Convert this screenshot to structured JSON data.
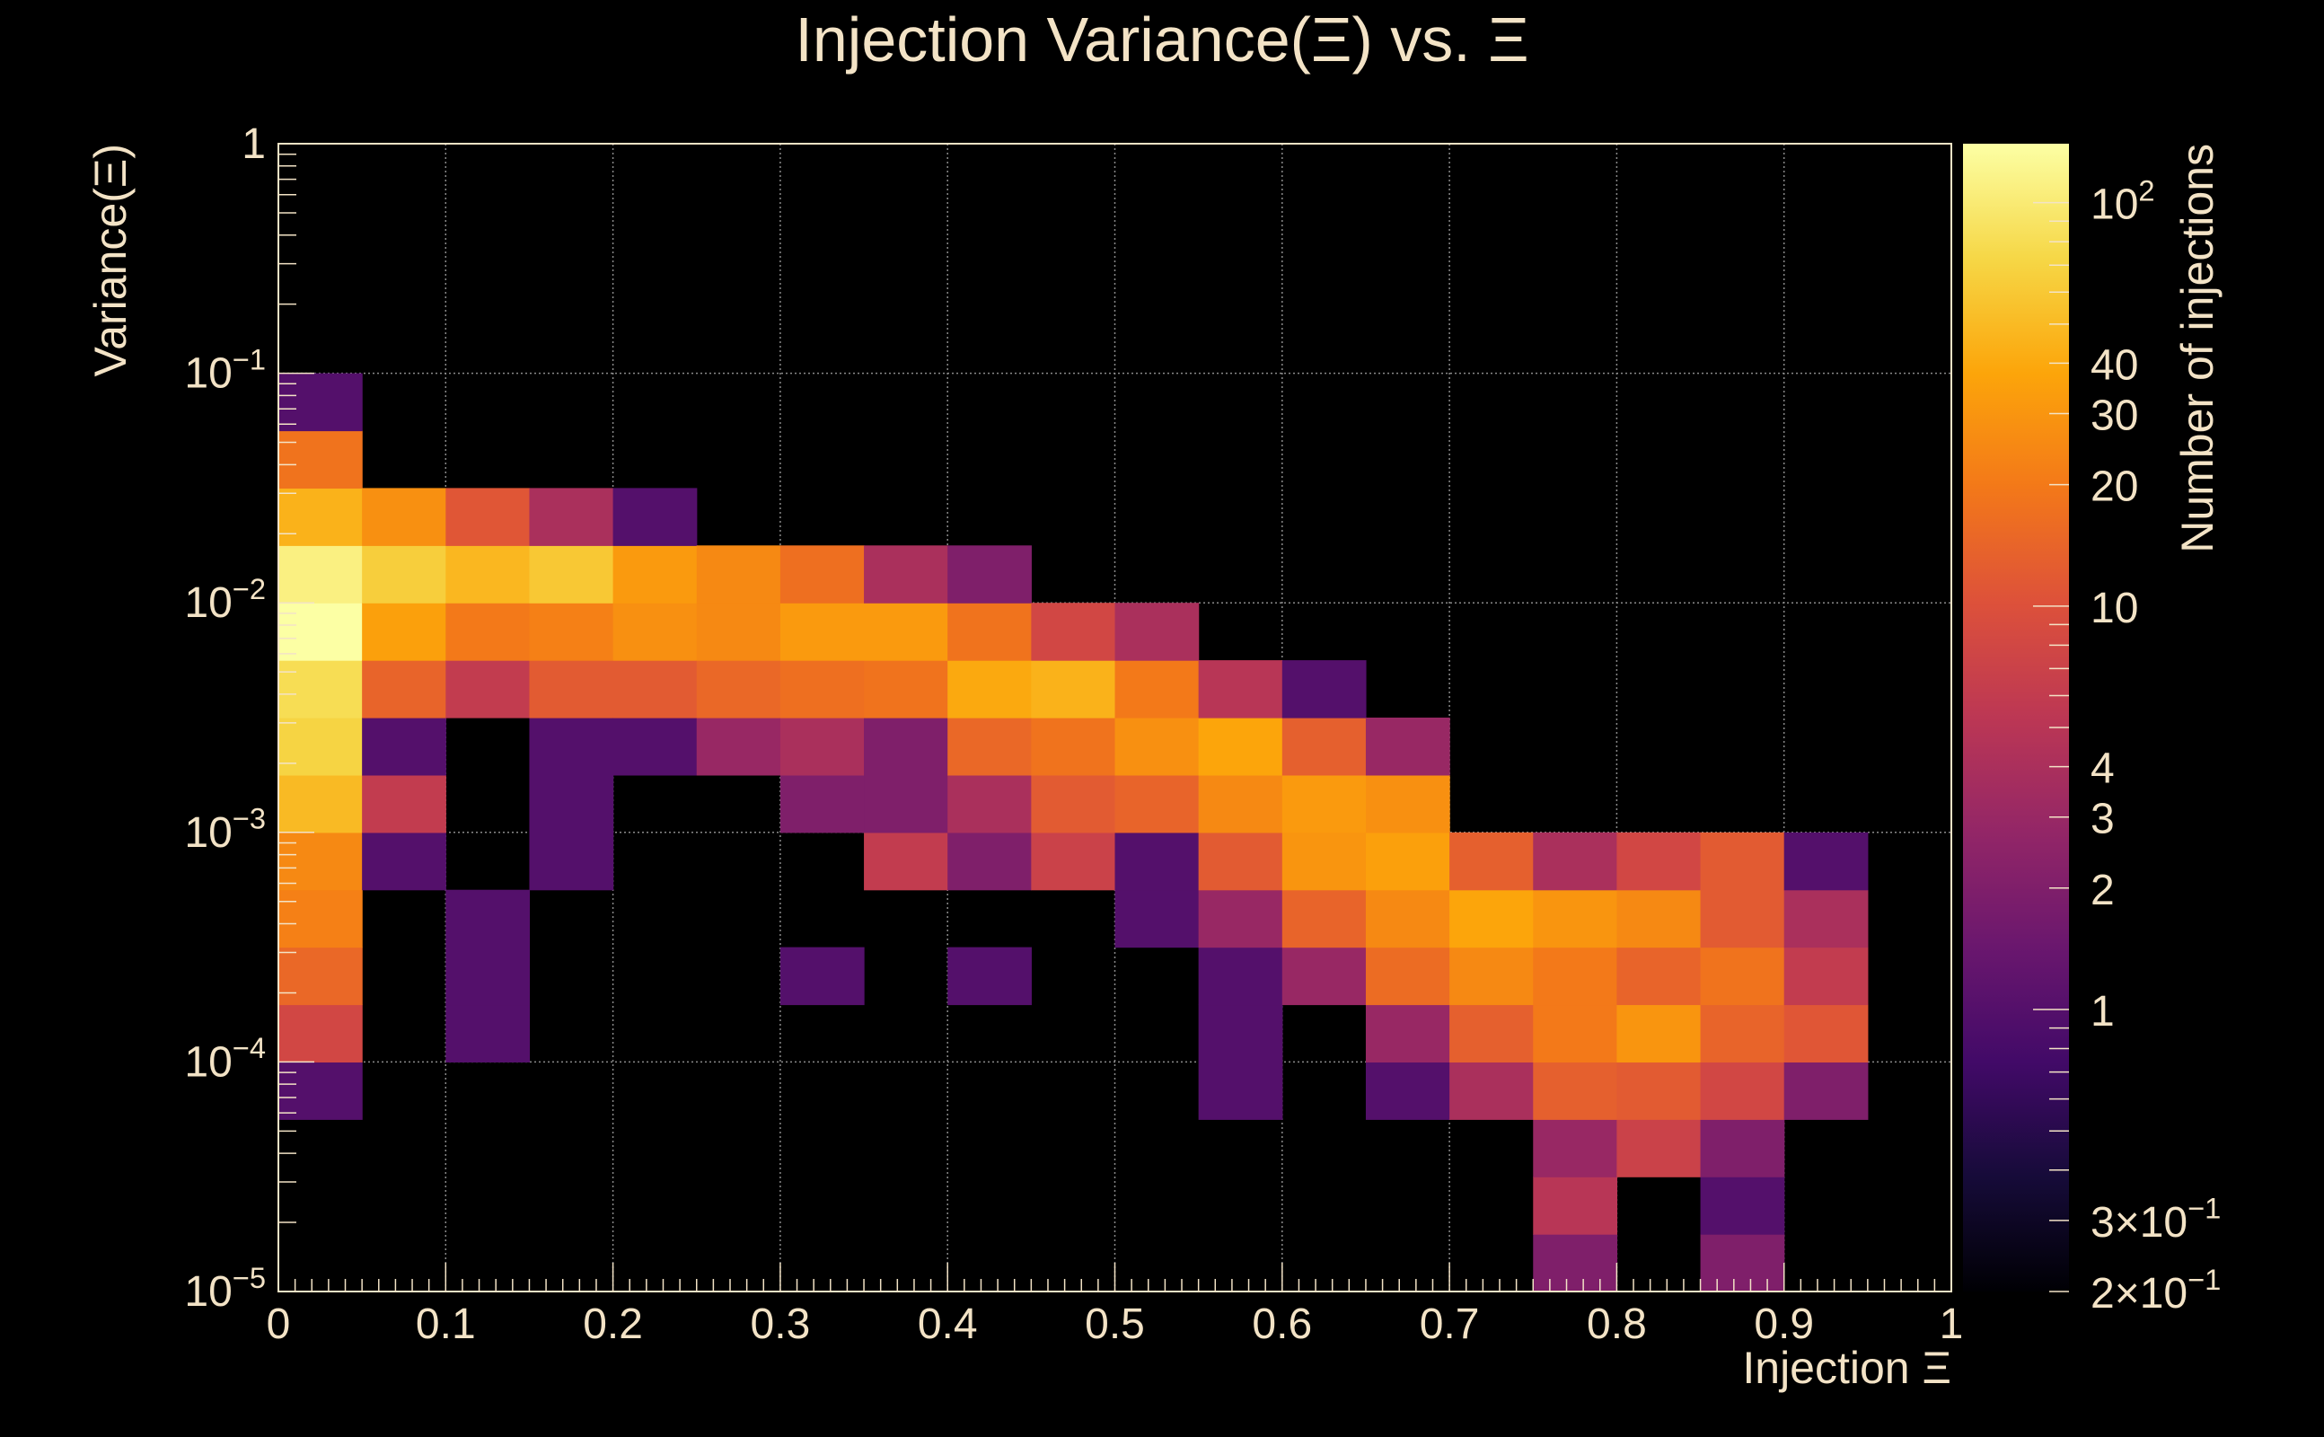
{
  "chart_data": {
    "type": "heatmap",
    "title": "Injection Variance(Ξ) vs. Ξ",
    "xlabel": "Injection Ξ",
    "ylabel": "Variance(Ξ)",
    "colorbar_label": "Number of injections",
    "colorscale": "inferno",
    "z_scale": "log",
    "z_range": [
      0.2,
      140
    ],
    "grid": true,
    "x_range": [
      0,
      1
    ],
    "y_range": [
      1e-05,
      1
    ],
    "y_scale": "log",
    "x_bin_edges": [
      0,
      0.05,
      0.1,
      0.15,
      0.2,
      0.25,
      0.3,
      0.35,
      0.4,
      0.45,
      0.5,
      0.55,
      0.6,
      0.65,
      0.7,
      0.75,
      0.8,
      0.85,
      0.9,
      0.95,
      1
    ],
    "y_bins_per_decade": 4,
    "x_ticks": [
      "0",
      "0.1",
      "0.2",
      "0.3",
      "0.4",
      "0.5",
      "0.6",
      "0.7",
      "0.8",
      "0.9",
      "1"
    ],
    "y_ticks": [
      {
        "base": "1",
        "exp": ""
      },
      {
        "base": "10",
        "exp": "−1"
      },
      {
        "base": "10",
        "exp": "−2"
      },
      {
        "base": "10",
        "exp": "−3"
      },
      {
        "base": "10",
        "exp": "−4"
      },
      {
        "base": "10",
        "exp": "−5"
      }
    ],
    "colorbar_ticks": [
      {
        "base": "10",
        "exp": "2",
        "value": 100
      },
      {
        "base": "40",
        "exp": "",
        "value": 40
      },
      {
        "base": "30",
        "exp": "",
        "value": 30
      },
      {
        "base": "20",
        "exp": "",
        "value": 20
      },
      {
        "base": "10",
        "exp": "",
        "value": 10
      },
      {
        "base": "4",
        "exp": "",
        "value": 4
      },
      {
        "base": "3",
        "exp": "",
        "value": 3
      },
      {
        "base": "2",
        "exp": "",
        "value": 2
      },
      {
        "base": "1",
        "exp": "",
        "value": 1
      },
      {
        "base": "3×10",
        "exp": "−1",
        "value": 0.3
      },
      {
        "base": "2×10",
        "exp": "−1",
        "value": 0.2
      }
    ],
    "cells_note": "each cell: [x_bin_index, y_bin_index (0 = lowest, 4 per decade from 1e-5), count]",
    "cells": [
      [
        0,
        3,
        1
      ],
      [
        0,
        4,
        8
      ],
      [
        0,
        5,
        15
      ],
      [
        0,
        6,
        22
      ],
      [
        0,
        7,
        25
      ],
      [
        0,
        8,
        50
      ],
      [
        0,
        9,
        70
      ],
      [
        0,
        10,
        80
      ],
      [
        0,
        11,
        140
      ],
      [
        0,
        12,
        110
      ],
      [
        0,
        13,
        45
      ],
      [
        0,
        14,
        18
      ],
      [
        0,
        15,
        1
      ],
      [
        1,
        7,
        1
      ],
      [
        1,
        8,
        6
      ],
      [
        1,
        9,
        1
      ],
      [
        1,
        10,
        14
      ],
      [
        1,
        11,
        35
      ],
      [
        1,
        12,
        65
      ],
      [
        1,
        13,
        28
      ],
      [
        2,
        4,
        1
      ],
      [
        2,
        5,
        1
      ],
      [
        2,
        6,
        1
      ],
      [
        2,
        10,
        6
      ],
      [
        2,
        11,
        20
      ],
      [
        2,
        12,
        48
      ],
      [
        2,
        13,
        11
      ],
      [
        3,
        7,
        1
      ],
      [
        3,
        8,
        1
      ],
      [
        3,
        9,
        1
      ],
      [
        3,
        10,
        12
      ],
      [
        3,
        11,
        22
      ],
      [
        3,
        12,
        60
      ],
      [
        3,
        13,
        4
      ],
      [
        4,
        9,
        1
      ],
      [
        4,
        10,
        12
      ],
      [
        4,
        11,
        28
      ],
      [
        4,
        12,
        32
      ],
      [
        4,
        13,
        1
      ],
      [
        5,
        9,
        3
      ],
      [
        5,
        10,
        15
      ],
      [
        5,
        11,
        25
      ],
      [
        5,
        12,
        25
      ],
      [
        6,
        5,
        1
      ],
      [
        6,
        8,
        2
      ],
      [
        6,
        9,
        4
      ],
      [
        6,
        10,
        17
      ],
      [
        6,
        11,
        32
      ],
      [
        6,
        12,
        17
      ],
      [
        7,
        7,
        6
      ],
      [
        7,
        8,
        2
      ],
      [
        7,
        9,
        2
      ],
      [
        7,
        10,
        18
      ],
      [
        7,
        11,
        32
      ],
      [
        7,
        12,
        4
      ],
      [
        8,
        5,
        1
      ],
      [
        8,
        7,
        2
      ],
      [
        8,
        8,
        4
      ],
      [
        8,
        9,
        15
      ],
      [
        8,
        10,
        40
      ],
      [
        8,
        11,
        18
      ],
      [
        8,
        12,
        2
      ],
      [
        9,
        7,
        7
      ],
      [
        9,
        8,
        12
      ],
      [
        9,
        9,
        18
      ],
      [
        9,
        10,
        45
      ],
      [
        9,
        11,
        8
      ],
      [
        10,
        6,
        1
      ],
      [
        10,
        7,
        1
      ],
      [
        10,
        8,
        14
      ],
      [
        10,
        9,
        28
      ],
      [
        10,
        10,
        20
      ],
      [
        10,
        11,
        4
      ],
      [
        11,
        3,
        1
      ],
      [
        11,
        4,
        1
      ],
      [
        11,
        5,
        1
      ],
      [
        11,
        6,
        3
      ],
      [
        11,
        7,
        12
      ],
      [
        11,
        8,
        25
      ],
      [
        11,
        9,
        38
      ],
      [
        11,
        10,
        5
      ],
      [
        12,
        5,
        3
      ],
      [
        12,
        6,
        14
      ],
      [
        12,
        7,
        30
      ],
      [
        12,
        8,
        32
      ],
      [
        12,
        9,
        13
      ],
      [
        12,
        10,
        1
      ],
      [
        13,
        3,
        1
      ],
      [
        13,
        4,
        3
      ],
      [
        13,
        5,
        16
      ],
      [
        13,
        6,
        25
      ],
      [
        13,
        7,
        35
      ],
      [
        13,
        8,
        28
      ],
      [
        13,
        9,
        3
      ],
      [
        14,
        3,
        4
      ],
      [
        14,
        4,
        13
      ],
      [
        14,
        5,
        25
      ],
      [
        14,
        6,
        38
      ],
      [
        14,
        7,
        13
      ],
      [
        15,
        0,
        2
      ],
      [
        15,
        1,
        5
      ],
      [
        15,
        2,
        3
      ],
      [
        15,
        3,
        13
      ],
      [
        15,
        4,
        20
      ],
      [
        15,
        5,
        20
      ],
      [
        15,
        6,
        30
      ],
      [
        15,
        7,
        4
      ],
      [
        16,
        2,
        7
      ],
      [
        16,
        3,
        12
      ],
      [
        16,
        4,
        30
      ],
      [
        16,
        5,
        14
      ],
      [
        16,
        6,
        25
      ],
      [
        16,
        7,
        8
      ],
      [
        17,
        0,
        2
      ],
      [
        17,
        1,
        1
      ],
      [
        17,
        2,
        2
      ],
      [
        17,
        3,
        8
      ],
      [
        17,
        4,
        14
      ],
      [
        17,
        5,
        18
      ],
      [
        17,
        6,
        12
      ],
      [
        17,
        7,
        12
      ],
      [
        18,
        3,
        2
      ],
      [
        18,
        4,
        11
      ],
      [
        18,
        5,
        6
      ],
      [
        18,
        6,
        4
      ],
      [
        18,
        7,
        1
      ]
    ]
  }
}
